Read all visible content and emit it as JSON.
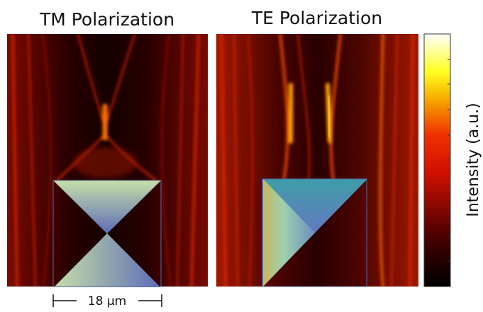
{
  "panels": [
    {
      "title": "TM Polarization"
    },
    {
      "title": "TE Polarization"
    }
  ],
  "colorbar": {
    "label": "Intensity (a.u.)"
  },
  "scale_bar": {
    "label": "18 μm"
  }
}
